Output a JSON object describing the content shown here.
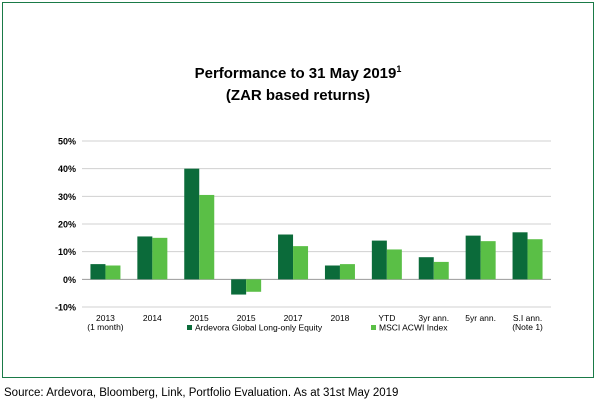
{
  "source_text": "Source: Ardevora, Bloomberg, Link, Portfolio Evaluation. As at 31st May 2019",
  "chart_data": {
    "type": "bar",
    "title_line1": "Performance to 31 May 2019",
    "title_footnote": "1",
    "title_line2": "(ZAR based returns)",
    "xlabel": "",
    "ylabel": "",
    "ylim": [
      -10,
      50
    ],
    "yticks": [
      "50%",
      "40%",
      "30%",
      "20%",
      "10%",
      "0%",
      "-10%"
    ],
    "ytick_values": [
      50,
      40,
      30,
      20,
      10,
      0,
      -10
    ],
    "grid": true,
    "legend_position": "bottom",
    "categories": [
      [
        "2013",
        "(1 month)"
      ],
      [
        "2014"
      ],
      [
        "2015"
      ],
      [
        "2015"
      ],
      [
        "2017"
      ],
      [
        "2018"
      ],
      [
        "YTD"
      ],
      [
        "3yr ann."
      ],
      [
        "5yr ann."
      ],
      [
        "S.I ann.",
        "(Note 1)"
      ]
    ],
    "series": [
      {
        "name": "Ardevora Global Long-only Equity",
        "color": "#0b6b3a",
        "values": [
          5.5,
          15.5,
          40,
          -5.5,
          16.2,
          5,
          14,
          8,
          15.8,
          17
        ]
      },
      {
        "name": "MSCI ACWI Index",
        "color": "#5abf46",
        "values": [
          5,
          15,
          30.5,
          -4.5,
          12,
          5.5,
          10.8,
          6.3,
          13.8,
          14.5
        ]
      }
    ]
  }
}
